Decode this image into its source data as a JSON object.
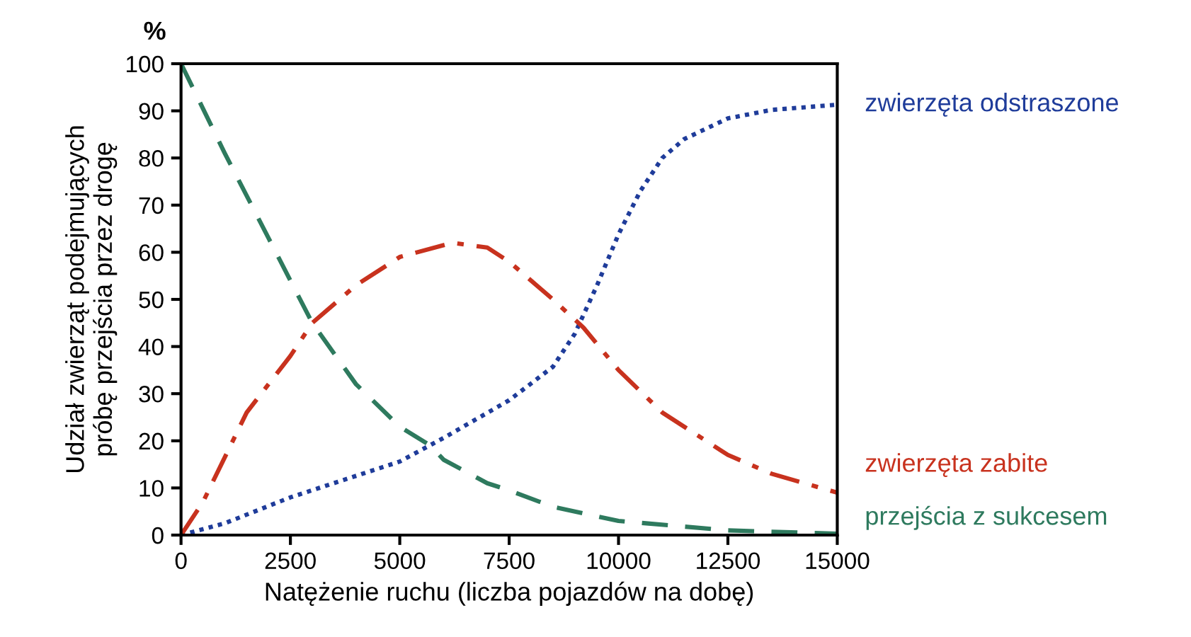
{
  "chart_data": {
    "type": "line",
    "xlabel": "Natężenie ruchu (liczba pojazdów na dobę)",
    "ylabel": "Udział zwierząt podejmujących\npróbę przejścia przez drogę",
    "annotations": [
      "%"
    ],
    "xlim": [
      0,
      15000
    ],
    "ylim": [
      0,
      100
    ],
    "xticks": [
      0,
      2500,
      5000,
      7500,
      10000,
      12500,
      15000
    ],
    "yticks": [
      0,
      10,
      20,
      30,
      40,
      50,
      60,
      70,
      80,
      90,
      100
    ],
    "grid": false,
    "legend": false,
    "marker": "none",
    "series": [
      {
        "name": "zwierzęta odstraszone",
        "color": "#1f3c9a",
        "line_style": "dotted",
        "x": [
          0,
          1000,
          2500,
          5000,
          6000,
          7500,
          8500,
          9000,
          9500,
          10000,
          10500,
          11000,
          11500,
          12500,
          13500,
          15000
        ],
        "values": [
          0,
          2.5,
          8,
          15.6,
          20.6,
          28.6,
          35.7,
          42.7,
          52.8,
          63.8,
          73,
          80,
          84,
          88.4,
          90.2,
          91.3
        ]
      },
      {
        "name": "zwierzęta zabite",
        "color": "#c8321e",
        "line_style": "dashdot",
        "x": [
          0,
          500,
          1500,
          2500,
          3000,
          4000,
          5000,
          6200,
          7000,
          7500,
          8500,
          9200,
          10000,
          11000,
          12500,
          13500,
          15000
        ],
        "values": [
          0,
          7,
          26,
          38,
          45,
          53,
          59,
          62,
          61,
          58,
          50,
          44,
          35,
          26,
          17,
          13,
          9
        ]
      },
      {
        "name": "przejścia z sukcesem",
        "color": "#2e7a5e",
        "line_style": "dashed",
        "x": [
          0,
          1000,
          2000,
          2500,
          3000,
          4000,
          5000,
          5700,
          6000,
          7000,
          7500,
          8500,
          10000,
          12500,
          15000
        ],
        "values": [
          100,
          81,
          63,
          54,
          45,
          32,
          23,
          19,
          16,
          11,
          9.5,
          6,
          3,
          1,
          0.3
        ]
      }
    ]
  }
}
